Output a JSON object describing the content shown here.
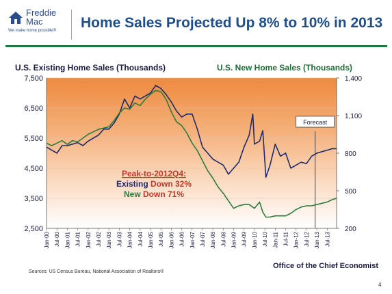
{
  "logo": {
    "name_line1": "Freddie",
    "name_line2": "Mac",
    "tagline": "We make home possible®"
  },
  "title": "Home Sales Projected Up 8% to 10% in 2013",
  "footer": {
    "office": "Office of the Chief Economist",
    "sources": "Sources: US Census Bureau, National Association of Realtors®",
    "page": "4"
  },
  "colors": {
    "existing": "#1f2a6b",
    "new": "#2e7a3c",
    "title": "#1f4e8a",
    "rule": "#1f7a3a",
    "annotation_red": "#c0392b"
  },
  "chart_data": {
    "type": "line",
    "ylabel": "U.S. Existing Home Sales (Thousands)",
    "y2label": "U.S. New Home Sales (Thousands)",
    "ylim": [
      2500,
      7500
    ],
    "yticks": [
      2500,
      3500,
      4500,
      5500,
      6500,
      7500
    ],
    "ytick_labels": [
      "2,500",
      "3,500",
      "4,500",
      "5,500",
      "6,500",
      "7,500"
    ],
    "y2lim": [
      200,
      1400
    ],
    "y2ticks": [
      200,
      500,
      800,
      1100,
      1400
    ],
    "y2tick_labels": [
      "200",
      "500",
      "800",
      "1,100",
      "1,400"
    ],
    "xlim": [
      2000.0,
      2013.95
    ],
    "xtick_labels": [
      "Jan-00",
      "Jul-00",
      "Jan-01",
      "Jul-01",
      "Jan-02",
      "Jul-02",
      "Jan-03",
      "Jul-03",
      "Jan-04",
      "Jul-04",
      "Jan-05",
      "Jul-05",
      "Jan-06",
      "Jul-06",
      "Jan-07",
      "Jul-07",
      "Jan-08",
      "Jul-08",
      "Jan-09",
      "Jul-09",
      "Jan-10",
      "Jul-10",
      "Jan-11",
      "Jul-11",
      "Jan-12",
      "Jul-12",
      "Jan-13",
      "Jul-13"
    ],
    "forecast_label": "Forecast",
    "forecast_start": 2012.92,
    "annotation": {
      "line1": "Peak-to-2012Q4:",
      "line2_prefix": "Existing ",
      "line2_value": "Down 32%",
      "line3_prefix": "New ",
      "line3_value": "Down 71%"
    },
    "series": [
      {
        "name": "U.S. Existing Home Sales (Thousands)",
        "axis": "left",
        "x": [
          2000.0,
          2000.25,
          2000.5,
          2000.75,
          2001.0,
          2001.25,
          2001.5,
          2001.75,
          2002.0,
          2002.25,
          2002.5,
          2002.75,
          2003.0,
          2003.25,
          2003.5,
          2003.75,
          2004.0,
          2004.25,
          2004.5,
          2004.75,
          2005.0,
          2005.25,
          2005.5,
          2005.75,
          2006.0,
          2006.25,
          2006.5,
          2006.75,
          2007.0,
          2007.25,
          2007.5,
          2007.75,
          2008.0,
          2008.25,
          2008.5,
          2008.75,
          2009.0,
          2009.25,
          2009.5,
          2009.75,
          2009.92,
          2010.0,
          2010.25,
          2010.4,
          2010.55,
          2010.75,
          2011.0,
          2011.25,
          2011.5,
          2011.75,
          2012.0,
          2012.25,
          2012.5,
          2012.75,
          2013.0,
          2013.25,
          2013.5,
          2013.75,
          2013.95
        ],
        "y": [
          5200,
          5100,
          5000,
          5250,
          5250,
          5300,
          5350,
          5250,
          5400,
          5500,
          5600,
          5800,
          5800,
          6000,
          6300,
          6800,
          6500,
          6900,
          6800,
          6900,
          7000,
          7250,
          7150,
          6950,
          6700,
          6400,
          6200,
          6300,
          6300,
          5800,
          5200,
          5000,
          4800,
          4700,
          4600,
          4300,
          4500,
          4700,
          5200,
          5600,
          6300,
          5300,
          5400,
          5750,
          4200,
          4600,
          5300,
          4900,
          5000,
          4500,
          4600,
          4700,
          4650,
          4900,
          5000,
          5050,
          5100,
          5150,
          5150
        ]
      },
      {
        "name": "U.S. New Home Sales (Thousands)",
        "axis": "right",
        "x": [
          2000.0,
          2000.25,
          2000.5,
          2000.75,
          2001.0,
          2001.25,
          2001.5,
          2001.75,
          2002.0,
          2002.25,
          2002.5,
          2002.75,
          2003.0,
          2003.25,
          2003.5,
          2003.75,
          2004.0,
          2004.25,
          2004.5,
          2004.75,
          2005.0,
          2005.25,
          2005.5,
          2005.75,
          2006.0,
          2006.25,
          2006.5,
          2006.75,
          2007.0,
          2007.25,
          2007.5,
          2007.75,
          2008.0,
          2008.25,
          2008.5,
          2008.75,
          2009.0,
          2009.25,
          2009.5,
          2009.75,
          2010.0,
          2010.25,
          2010.4,
          2010.55,
          2010.75,
          2011.0,
          2011.25,
          2011.5,
          2011.75,
          2012.0,
          2012.25,
          2012.5,
          2012.75,
          2013.0,
          2013.25,
          2013.5,
          2013.75,
          2013.95
        ],
        "y": [
          880,
          860,
          880,
          900,
          870,
          900,
          890,
          920,
          950,
          970,
          990,
          1000,
          1010,
          1060,
          1120,
          1160,
          1150,
          1200,
          1180,
          1230,
          1270,
          1300,
          1290,
          1230,
          1130,
          1050,
          1020,
          960,
          880,
          820,
          740,
          660,
          600,
          530,
          480,
          420,
          360,
          380,
          390,
          390,
          360,
          410,
          330,
          290,
          290,
          300,
          300,
          300,
          320,
          350,
          370,
          380,
          380,
          390,
          400,
          410,
          430,
          440
        ]
      }
    ]
  }
}
